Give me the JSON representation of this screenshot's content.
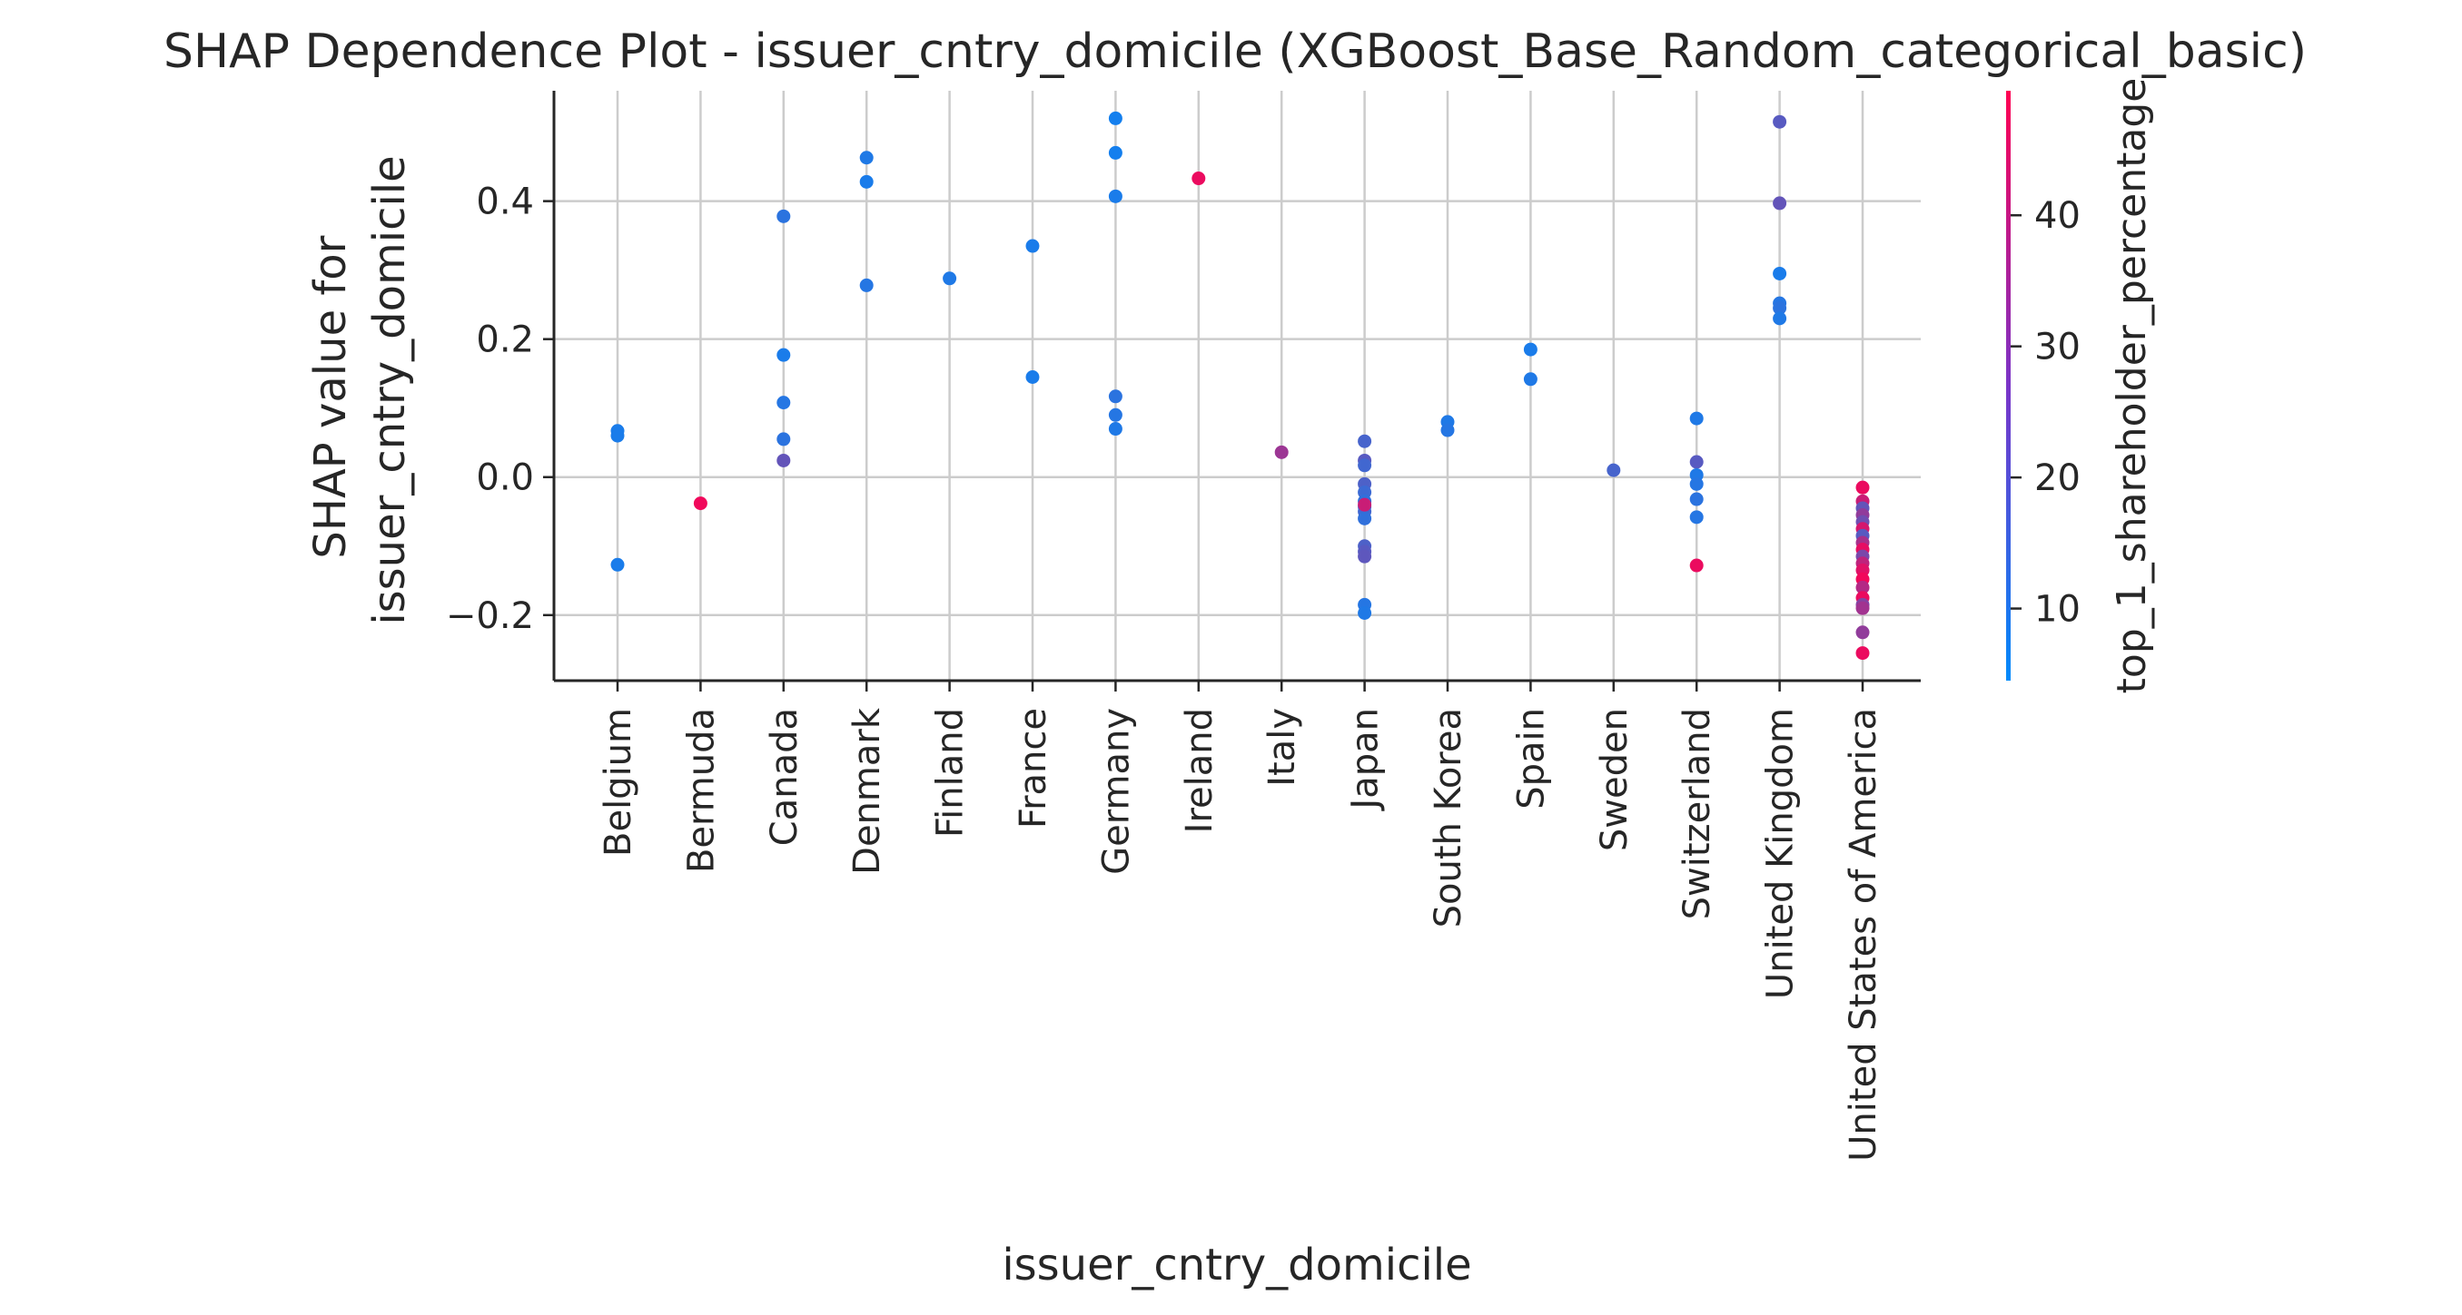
{
  "chart_data": {
    "type": "scatter",
    "title": "SHAP Dependence Plot - issuer_cntry_domicile (XGBoost_Base_Random_categorical_basic)",
    "xlabel": "issuer_cntry_domicile",
    "ylabel_lines": [
      "SHAP value for",
      "issuer_cntry_domicile"
    ],
    "colorbar_label": "top_1_shareholder_percentage",
    "categories": [
      "Belgium",
      "Bermuda",
      "Canada",
      "Denmark",
      "Finland",
      "France",
      "Germany",
      "Ireland",
      "Italy",
      "Japan",
      "South Korea",
      "Spain",
      "Sweden",
      "Switzerland",
      "United Kingdom",
      "United States of America"
    ],
    "y_ticks": [
      -0.2,
      0.0,
      0.2,
      0.4
    ],
    "y_tick_labels": [
      "−0.2",
      "0.0",
      "0.2",
      "0.4"
    ],
    "ylim": [
      -0.295,
      0.56
    ],
    "colorbar_ticks": [
      10,
      20,
      30,
      40
    ],
    "colorbar_range": [
      4.5,
      49.5
    ],
    "colormap": [
      "#008afb",
      "#ff0052"
    ],
    "grid": true,
    "points": [
      {
        "x": "Belgium",
        "y": 0.067,
        "c": 9
      },
      {
        "x": "Belgium",
        "y": 0.06,
        "c": 9
      },
      {
        "x": "Belgium",
        "y": -0.127,
        "c": 9
      },
      {
        "x": "Bermuda",
        "y": -0.038,
        "c": 47
      },
      {
        "x": "Canada",
        "y": 0.378,
        "c": 12
      },
      {
        "x": "Canada",
        "y": 0.177,
        "c": 9
      },
      {
        "x": "Canada",
        "y": 0.108,
        "c": 11
      },
      {
        "x": "Canada",
        "y": 0.055,
        "c": 12
      },
      {
        "x": "Canada",
        "y": 0.024,
        "c": 22
      },
      {
        "x": "Denmark",
        "y": 0.463,
        "c": 10
      },
      {
        "x": "Denmark",
        "y": 0.428,
        "c": 9
      },
      {
        "x": "Denmark",
        "y": 0.278,
        "c": 11
      },
      {
        "x": "Finland",
        "y": 0.288,
        "c": 10
      },
      {
        "x": "France",
        "y": 0.335,
        "c": 9
      },
      {
        "x": "France",
        "y": 0.145,
        "c": 9
      },
      {
        "x": "Germany",
        "y": 0.52,
        "c": 8
      },
      {
        "x": "Germany",
        "y": 0.47,
        "c": 8
      },
      {
        "x": "Germany",
        "y": 0.407,
        "c": 9
      },
      {
        "x": "Germany",
        "y": 0.117,
        "c": 12
      },
      {
        "x": "Germany",
        "y": 0.09,
        "c": 11
      },
      {
        "x": "Germany",
        "y": 0.07,
        "c": 10
      },
      {
        "x": "Ireland",
        "y": 0.433,
        "c": 46
      },
      {
        "x": "Italy",
        "y": 0.036,
        "c": 32
      },
      {
        "x": "Japan",
        "y": 0.052,
        "c": 17
      },
      {
        "x": "Japan",
        "y": 0.024,
        "c": 20
      },
      {
        "x": "Japan",
        "y": 0.017,
        "c": 16
      },
      {
        "x": "Japan",
        "y": -0.01,
        "c": 18
      },
      {
        "x": "Japan",
        "y": -0.022,
        "c": 15
      },
      {
        "x": "Japan",
        "y": -0.035,
        "c": 13
      },
      {
        "x": "Japan",
        "y": -0.043,
        "c": 14
      },
      {
        "x": "Japan",
        "y": -0.05,
        "c": 16
      },
      {
        "x": "Japan",
        "y": -0.06,
        "c": 13
      },
      {
        "x": "Japan",
        "y": -0.1,
        "c": 18
      },
      {
        "x": "Japan",
        "y": -0.108,
        "c": 20
      },
      {
        "x": "Japan",
        "y": -0.115,
        "c": 21
      },
      {
        "x": "Japan",
        "y": -0.185,
        "c": 11
      },
      {
        "x": "Japan",
        "y": -0.197,
        "c": 10
      },
      {
        "x": "Japan",
        "y": -0.04,
        "c": 40
      },
      {
        "x": "South Korea",
        "y": 0.08,
        "c": 10
      },
      {
        "x": "South Korea",
        "y": 0.068,
        "c": 11
      },
      {
        "x": "Spain",
        "y": 0.185,
        "c": 9
      },
      {
        "x": "Spain",
        "y": 0.142,
        "c": 10
      },
      {
        "x": "Sweden",
        "y": 0.01,
        "c": 17
      },
      {
        "x": "Switzerland",
        "y": 0.085,
        "c": 10
      },
      {
        "x": "Switzerland",
        "y": 0.022,
        "c": 20
      },
      {
        "x": "Switzerland",
        "y": 0.003,
        "c": 10
      },
      {
        "x": "Switzerland",
        "y": -0.01,
        "c": 11
      },
      {
        "x": "Switzerland",
        "y": -0.032,
        "c": 12
      },
      {
        "x": "Switzerland",
        "y": -0.058,
        "c": 11
      },
      {
        "x": "Switzerland",
        "y": -0.128,
        "c": 46
      },
      {
        "x": "United Kingdom",
        "y": 0.515,
        "c": 20
      },
      {
        "x": "United Kingdom",
        "y": 0.397,
        "c": 22
      },
      {
        "x": "United Kingdom",
        "y": 0.295,
        "c": 9
      },
      {
        "x": "United Kingdom",
        "y": 0.252,
        "c": 11
      },
      {
        "x": "United Kingdom",
        "y": 0.245,
        "c": 12
      },
      {
        "x": "United Kingdom",
        "y": 0.23,
        "c": 10
      },
      {
        "x": "United States of America",
        "y": -0.015,
        "c": 46
      },
      {
        "x": "United States of America",
        "y": -0.035,
        "c": 40
      },
      {
        "x": "United States of America",
        "y": -0.045,
        "c": 22
      },
      {
        "x": "United States of America",
        "y": -0.055,
        "c": 30
      },
      {
        "x": "United States of America",
        "y": -0.065,
        "c": 24
      },
      {
        "x": "United States of America",
        "y": -0.075,
        "c": 42
      },
      {
        "x": "United States of America",
        "y": -0.085,
        "c": 20
      },
      {
        "x": "United States of America",
        "y": -0.095,
        "c": 34
      },
      {
        "x": "United States of America",
        "y": -0.105,
        "c": 45
      },
      {
        "x": "United States of America",
        "y": -0.115,
        "c": 26
      },
      {
        "x": "United States of America",
        "y": -0.125,
        "c": 38
      },
      {
        "x": "United States of America",
        "y": -0.135,
        "c": 44
      },
      {
        "x": "United States of America",
        "y": -0.148,
        "c": 47
      },
      {
        "x": "United States of America",
        "y": -0.16,
        "c": 36
      },
      {
        "x": "United States of America",
        "y": -0.175,
        "c": 46
      },
      {
        "x": "United States of America",
        "y": -0.185,
        "c": 28
      },
      {
        "x": "United States of America",
        "y": -0.19,
        "c": 33
      },
      {
        "x": "United States of America",
        "y": -0.225,
        "c": 30
      },
      {
        "x": "United States of America",
        "y": -0.255,
        "c": 46
      }
    ]
  }
}
